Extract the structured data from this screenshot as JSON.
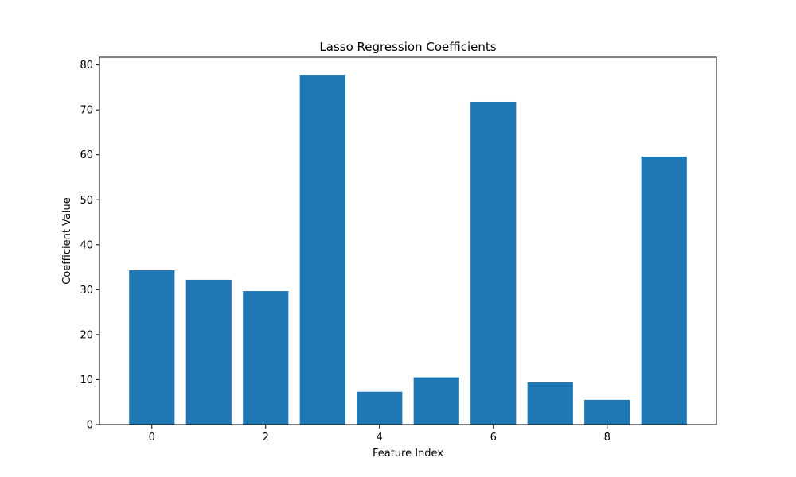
{
  "chart_data": {
    "type": "bar",
    "title": "Lasso Regression Coefficients",
    "xlabel": "Feature Index",
    "ylabel": "Coefficient Value",
    "categories": [
      0,
      1,
      2,
      3,
      4,
      5,
      6,
      7,
      8,
      9
    ],
    "values": [
      34.3,
      32.2,
      29.7,
      77.8,
      7.3,
      10.5,
      71.8,
      9.4,
      5.5,
      59.6
    ],
    "xlim": [
      -0.92,
      9.92
    ],
    "ylim": [
      0,
      81.7
    ],
    "x_ticks": [
      0,
      2,
      4,
      6,
      8
    ],
    "y_ticks": [
      0,
      10,
      20,
      30,
      40,
      50,
      60,
      70,
      80
    ],
    "bar_color": "#1f77b4",
    "grid": false,
    "legend": "none"
  }
}
